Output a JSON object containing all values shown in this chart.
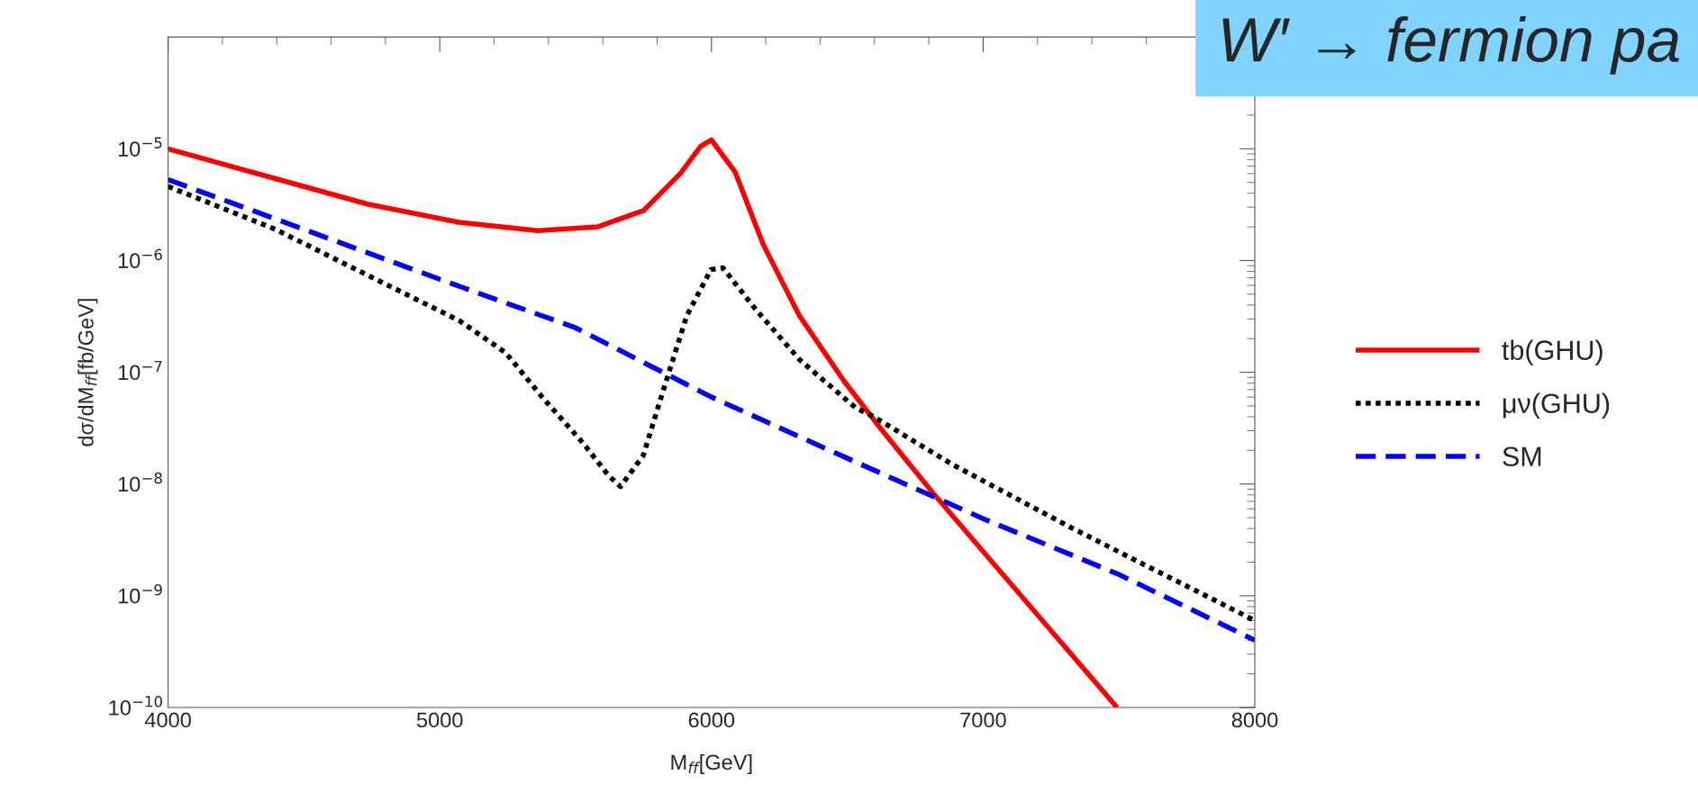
{
  "chart_data": {
    "type": "line",
    "xlabel": "M$_{ff}$[GeV]",
    "ylabel": "dσ/dM$_{ff}$[fb/GeV]",
    "log": "y",
    "grid": false,
    "legend": "right",
    "xlim": [
      4000,
      8000
    ],
    "xticks": [
      4000,
      5000,
      6000,
      7000,
      8000
    ],
    "ylim": [
      1e-10,
      0.0001
    ],
    "yticks": [
      {
        "value": 1e-10,
        "label": "10$^{−10}$"
      },
      {
        "value": 1e-09,
        "label": "10$^{−9}$"
      },
      {
        "value": 1e-08,
        "label": "10$^{−8}$"
      },
      {
        "value": 1e-07,
        "label": "10$^{−7}$"
      },
      {
        "value": 1e-06,
        "label": "10$^{−6}$"
      },
      {
        "value": 1e-05,
        "label": "10$^{−5}$"
      }
    ],
    "annotations": [
      "W′ → fermion pa"
    ],
    "series": [
      {
        "name": "tb(GHU)",
        "color": "#ff0000",
        "line_style": "solid",
        "x": [
          4000,
          4396,
          4734,
          5072,
          5360,
          5580,
          5750,
          5885,
          5960,
          6000,
          6087,
          6190,
          6324,
          6487,
          6620,
          6812,
          7182,
          7493
        ],
        "values": [
          1e-05,
          5.4e-06,
          3.2e-06,
          2.2e-06,
          1.85e-06,
          2e-06,
          2.8e-06,
          6e-06,
          1.05e-05,
          1.2e-05,
          6.2e-06,
          1.4e-06,
          3.2e-07,
          8.4e-08,
          3.2e-08,
          8.5e-09,
          7.6e-10,
          1e-10
        ]
      },
      {
        "name": "μν(GHU)",
        "color": "#000000",
        "line_style": "dotted",
        "x": [
          4000,
          4396,
          4734,
          5072,
          5242,
          5377,
          5529,
          5620,
          5665,
          5749,
          5825,
          5909,
          5998,
          6042,
          6161,
          6324,
          6531,
          6590,
          6886,
          7330,
          8000
        ],
        "values": [
          4.6e-06,
          1.9e-06,
          7.4e-07,
          2.9e-07,
          1.5e-07,
          6e-08,
          2.3e-08,
          1.2e-08,
          9.5e-09,
          1.8e-08,
          7.2e-08,
          3.2e-07,
          8.3e-07,
          8.6e-07,
          3.7e-07,
          1.3e-07,
          4.8e-08,
          4.1e-08,
          1.5e-08,
          4e-09,
          6e-10
        ]
      },
      {
        "name": "SM",
        "color": "#0000ff",
        "line_style": "dashed",
        "x": [
          4000,
          4500,
          5000,
          5500,
          6000,
          6500,
          7000,
          7500,
          8000
        ],
        "values": [
          5.3e-06,
          1.9e-06,
          6.8e-07,
          2.5e-07,
          6e-08,
          1.7e-08,
          4.9e-09,
          1.55e-09,
          4e-10
        ]
      }
    ]
  }
}
